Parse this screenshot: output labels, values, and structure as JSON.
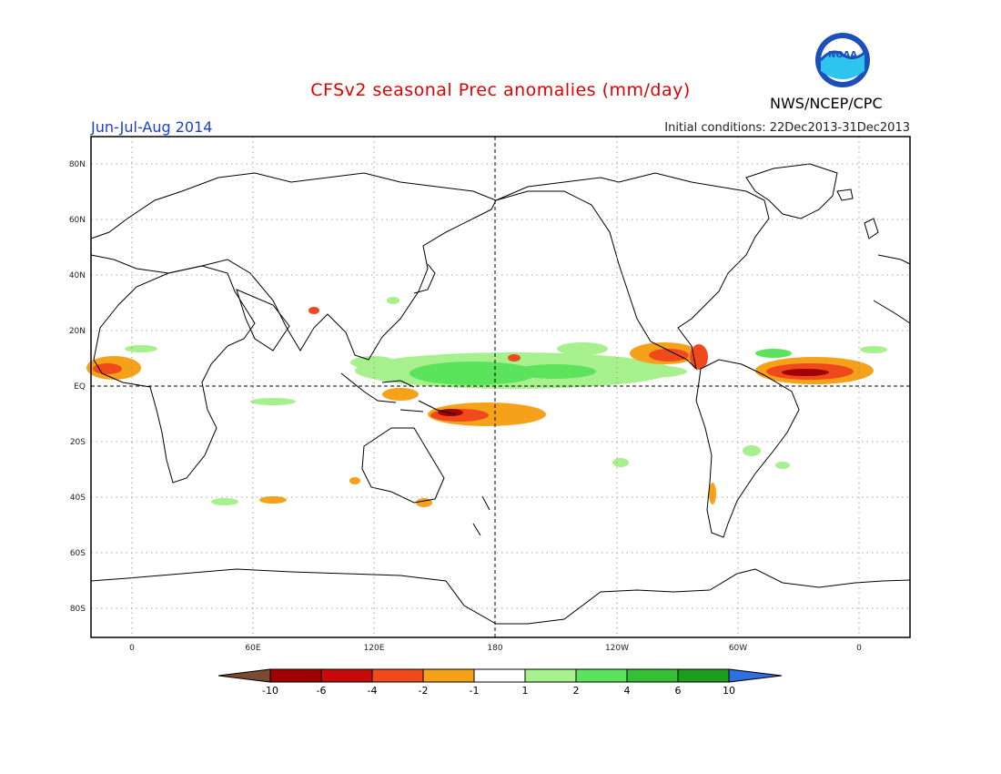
{
  "header": {
    "title": "CFSv2 seasonal Prec anomalies (mm/day)",
    "agency": "NWS/NCEP/CPC",
    "season": "Jun-Jul-Aug 2014",
    "initial_conditions": "Initial conditions: 22Dec2013-31Dec2013",
    "logo_text": "NOAA"
  },
  "map": {
    "lat_labels": [
      "80N",
      "60N",
      "40N",
      "20N",
      "EQ",
      "20S",
      "40S",
      "60S",
      "80S"
    ],
    "lon_labels": [
      "0",
      "60E",
      "120E",
      "180",
      "120W",
      "60W",
      "0"
    ],
    "grid": "dotted"
  },
  "colorbar": {
    "labels": [
      "-10",
      "-6",
      "-4",
      "-2",
      "-1",
      "1",
      "2",
      "4",
      "6",
      "10"
    ],
    "colors": {
      "lt_-10": "#7a4a32",
      "-10_-6": "#a00000",
      "-6_-4": "#c80a0a",
      "-4_-2": "#f04a1c",
      "-2_-1": "#f5a21a",
      "-1_1": "#ffffff",
      "1_2": "#a6f08e",
      "2_4": "#5ce35c",
      "4_6": "#35bf35",
      "6_10": "#1c9e1c",
      "gt_10": "#2f6fe0"
    }
  }
}
